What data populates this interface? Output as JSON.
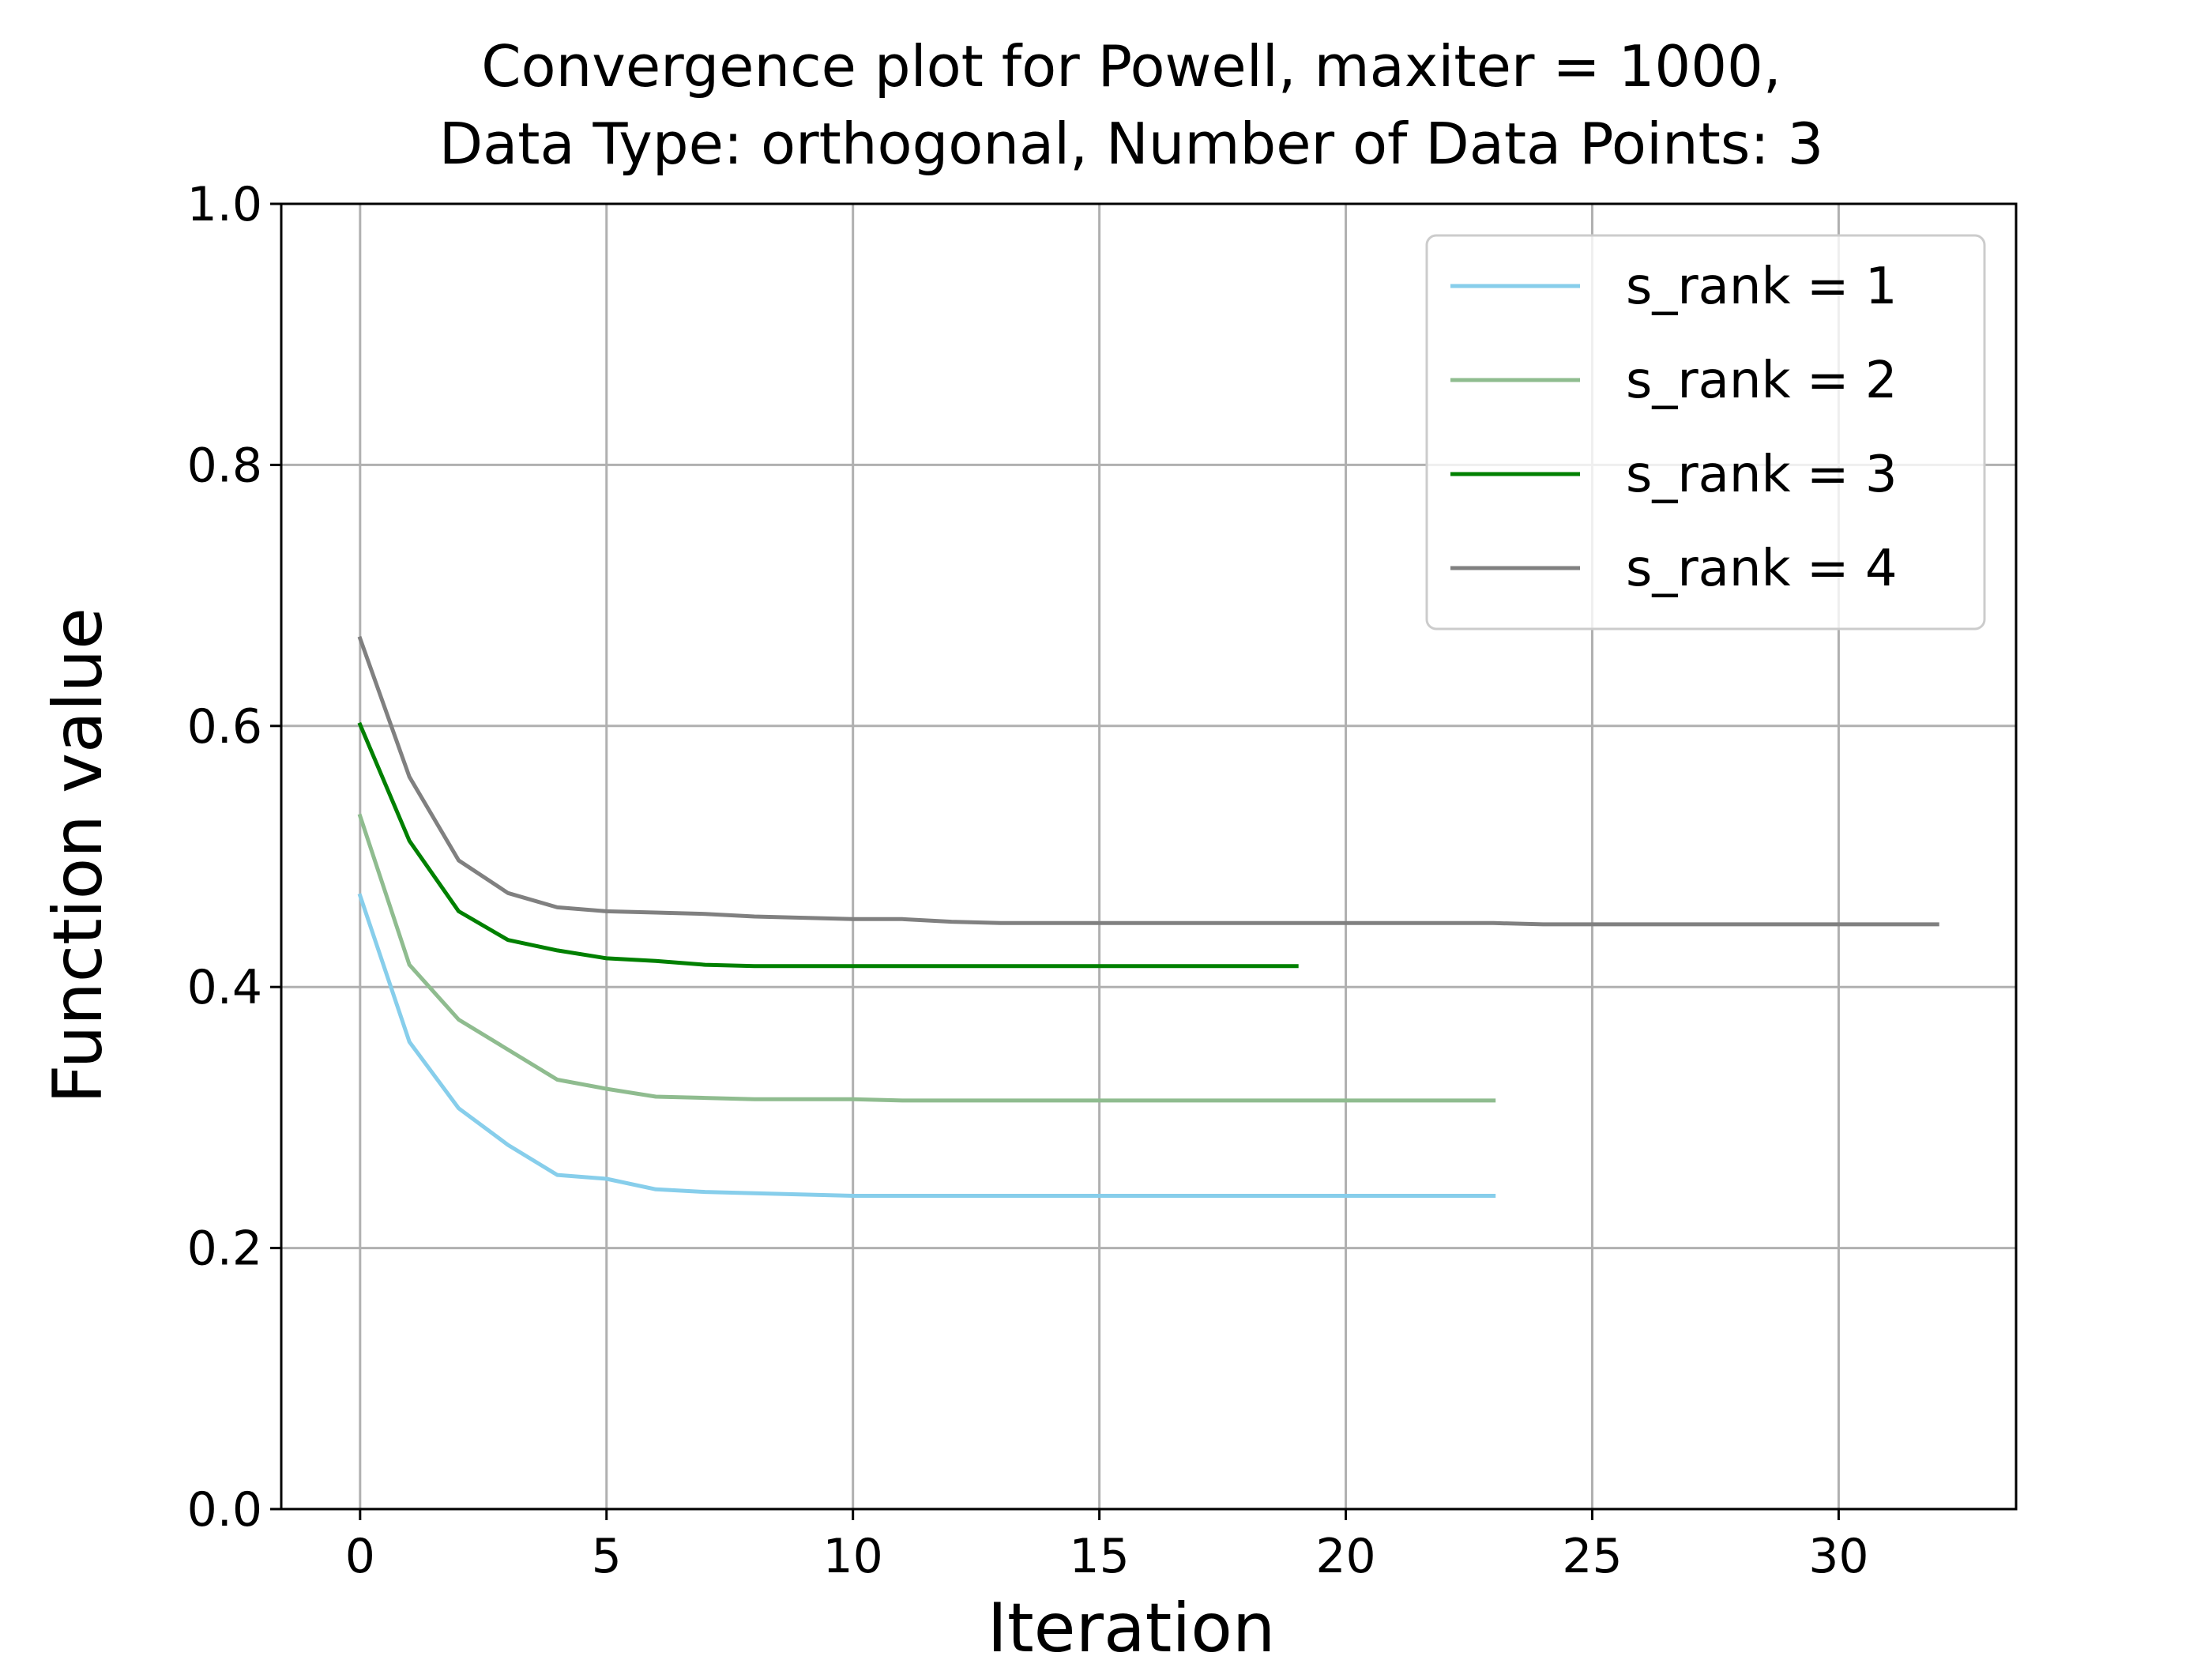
{
  "chart_data": {
    "type": "line",
    "title": [
      "Convergence plot for Powell, maxiter = 1000,",
      "Data Type: orthogonal, Number of Data Points: 3"
    ],
    "xlabel": "Iteration",
    "ylabel": "Function value",
    "xlim": [
      -1.6,
      33.6
    ],
    "ylim": [
      0.0,
      1.0
    ],
    "xticks": [
      0,
      5,
      10,
      15,
      20,
      25,
      30
    ],
    "xtick_labels": [
      "0",
      "5",
      "10",
      "15",
      "20",
      "25",
      "30"
    ],
    "yticks": [
      0.0,
      0.2,
      0.4,
      0.6,
      0.8,
      1.0
    ],
    "ytick_labels": [
      "0.0",
      "0.2",
      "0.4",
      "0.6",
      "0.8",
      "1.0"
    ],
    "grid": true,
    "legend_position": "upper right",
    "series": [
      {
        "name": "s_rank = 1",
        "color": "#87CEEB",
        "x": [
          0,
          1,
          2,
          3,
          4,
          5,
          6,
          7,
          8,
          9,
          10,
          11,
          12,
          13,
          14,
          15,
          16,
          17,
          18,
          19,
          20,
          21,
          22,
          23
        ],
        "y": [
          0.47,
          0.358,
          0.307,
          0.279,
          0.256,
          0.253,
          0.245,
          0.243,
          0.242,
          0.241,
          0.24,
          0.24,
          0.24,
          0.24,
          0.24,
          0.24,
          0.24,
          0.24,
          0.24,
          0.24,
          0.24,
          0.24,
          0.24,
          0.24
        ]
      },
      {
        "name": "s_rank = 2",
        "color": "#8FBC8F",
        "x": [
          0,
          1,
          2,
          3,
          4,
          5,
          6,
          7,
          8,
          9,
          10,
          11,
          12,
          13,
          14,
          15,
          16,
          17,
          18,
          19,
          20,
          21,
          22,
          23
        ],
        "y": [
          0.531,
          0.417,
          0.375,
          0.352,
          0.329,
          0.322,
          0.316,
          0.315,
          0.314,
          0.314,
          0.314,
          0.313,
          0.313,
          0.313,
          0.313,
          0.313,
          0.313,
          0.313,
          0.313,
          0.313,
          0.313,
          0.313,
          0.313,
          0.313
        ]
      },
      {
        "name": "s_rank = 3",
        "color": "#008000",
        "x": [
          0,
          1,
          2,
          3,
          4,
          5,
          6,
          7,
          8,
          9,
          10,
          11,
          12,
          13,
          14,
          15,
          16,
          17,
          18,
          19
        ],
        "y": [
          0.601,
          0.512,
          0.458,
          0.436,
          0.428,
          0.422,
          0.42,
          0.417,
          0.416,
          0.416,
          0.416,
          0.416,
          0.416,
          0.416,
          0.416,
          0.416,
          0.416,
          0.416,
          0.416,
          0.416
        ]
      },
      {
        "name": "s_rank = 4",
        "color": "#808080",
        "x": [
          0,
          1,
          2,
          3,
          4,
          5,
          6,
          7,
          8,
          9,
          10,
          11,
          12,
          13,
          14,
          15,
          16,
          17,
          18,
          19,
          20,
          21,
          22,
          23,
          24,
          25,
          26,
          27,
          28,
          29,
          30,
          31,
          32
        ],
        "y": [
          0.667,
          0.561,
          0.497,
          0.472,
          0.461,
          0.458,
          0.457,
          0.456,
          0.454,
          0.453,
          0.452,
          0.452,
          0.45,
          0.449,
          0.449,
          0.449,
          0.449,
          0.449,
          0.449,
          0.449,
          0.449,
          0.449,
          0.449,
          0.449,
          0.448,
          0.448,
          0.448,
          0.448,
          0.448,
          0.448,
          0.448,
          0.448,
          0.448
        ]
      }
    ]
  }
}
